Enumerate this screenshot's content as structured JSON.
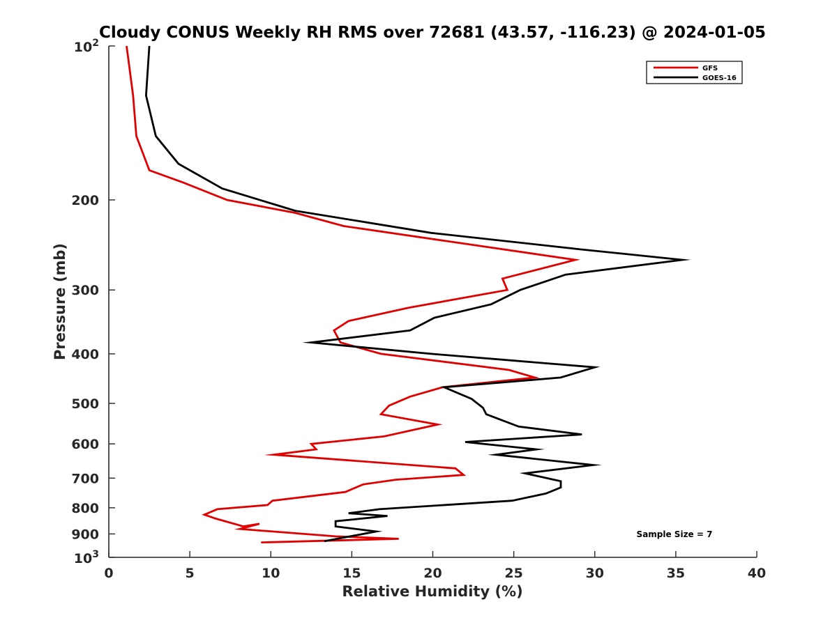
{
  "chart_data": {
    "type": "line",
    "title": "Cloudy CONUS Weekly RH RMS over 72681 (43.57, -116.23) @ 2024-01-05",
    "xlabel": "Relative Humidity (%)",
    "ylabel": "Pressure (mb)",
    "xlim": [
      0,
      40
    ],
    "ylim": [
      100,
      1000
    ],
    "yscale": "log",
    "y_reversed": true,
    "x_ticks": [
      "0",
      "5",
      "10",
      "15",
      "20",
      "25",
      "30",
      "35",
      "40"
    ],
    "y_ticks": [
      {
        "value": 100,
        "base": "10",
        "exp": "2"
      },
      {
        "value": 200,
        "label": "200"
      },
      {
        "value": 300,
        "label": "300"
      },
      {
        "value": 400,
        "label": "400"
      },
      {
        "value": 500,
        "label": "500"
      },
      {
        "value": 600,
        "label": "600"
      },
      {
        "value": 700,
        "label": "700"
      },
      {
        "value": 800,
        "label": "800"
      },
      {
        "value": 900,
        "label": "900"
      },
      {
        "value": 1000,
        "base": "10",
        "exp": "3"
      }
    ],
    "grid": false,
    "legend_position": "top-right",
    "annotation": "Sample Size = 7",
    "series": [
      {
        "name": "GFS",
        "color": "#e00000",
        "points": [
          [
            1.1,
            100
          ],
          [
            1.5,
            125
          ],
          [
            1.7,
            150
          ],
          [
            2.5,
            175
          ],
          [
            4.6,
            185
          ],
          [
            7.3,
            200
          ],
          [
            11.5,
            212
          ],
          [
            14.5,
            225
          ],
          [
            28.8,
            262
          ],
          [
            24.3,
            285
          ],
          [
            24.6,
            300
          ],
          [
            18.5,
            325
          ],
          [
            14.8,
            345
          ],
          [
            13.9,
            360
          ],
          [
            14.3,
            380
          ],
          [
            16.8,
            400
          ],
          [
            24.7,
            430
          ],
          [
            26.3,
            445
          ],
          [
            20.6,
            465
          ],
          [
            18.6,
            485
          ],
          [
            17.3,
            505
          ],
          [
            16.8,
            525
          ],
          [
            20.3,
            550
          ],
          [
            17.0,
            580
          ],
          [
            12.5,
            600
          ],
          [
            12.8,
            615
          ],
          [
            10.2,
            630
          ],
          [
            21.4,
            670
          ],
          [
            21.9,
            690
          ],
          [
            17.7,
            705
          ],
          [
            15.7,
            720
          ],
          [
            14.6,
            745
          ],
          [
            10.1,
            775
          ],
          [
            9.8,
            790
          ],
          [
            6.7,
            805
          ],
          [
            5.9,
            825
          ],
          [
            6.6,
            840
          ],
          [
            8.3,
            870
          ],
          [
            9.3,
            860
          ],
          [
            8.1,
            880
          ],
          [
            14.0,
            910
          ],
          [
            17.9,
            920
          ],
          [
            9.4,
            935
          ]
        ]
      },
      {
        "name": "GOES-16",
        "color": "#000000",
        "points": [
          [
            2.5,
            100
          ],
          [
            2.3,
            125
          ],
          [
            2.9,
            150
          ],
          [
            4.3,
            170
          ],
          [
            7.0,
            190
          ],
          [
            11.5,
            210
          ],
          [
            19.9,
            232
          ],
          [
            29.2,
            250
          ],
          [
            35.4,
            262
          ],
          [
            28.2,
            280
          ],
          [
            25.4,
            300
          ],
          [
            23.6,
            320
          ],
          [
            20.1,
            340
          ],
          [
            18.6,
            360
          ],
          [
            12.5,
            380
          ],
          [
            19.9,
            400
          ],
          [
            30.0,
            425
          ],
          [
            27.9,
            445
          ],
          [
            20.7,
            465
          ],
          [
            22.4,
            490
          ],
          [
            23.1,
            510
          ],
          [
            23.3,
            525
          ],
          [
            25.3,
            555
          ],
          [
            29.2,
            575
          ],
          [
            22.0,
            595
          ],
          [
            26.4,
            615
          ],
          [
            23.9,
            630
          ],
          [
            29.9,
            660
          ],
          [
            25.7,
            685
          ],
          [
            27.9,
            710
          ],
          [
            27.9,
            730
          ],
          [
            27.0,
            750
          ],
          [
            24.9,
            775
          ],
          [
            16.7,
            805
          ],
          [
            14.8,
            820
          ],
          [
            17.2,
            830
          ],
          [
            14.0,
            850
          ],
          [
            14.0,
            870
          ],
          [
            16.5,
            890
          ],
          [
            13.3,
            930
          ]
        ]
      }
    ]
  }
}
